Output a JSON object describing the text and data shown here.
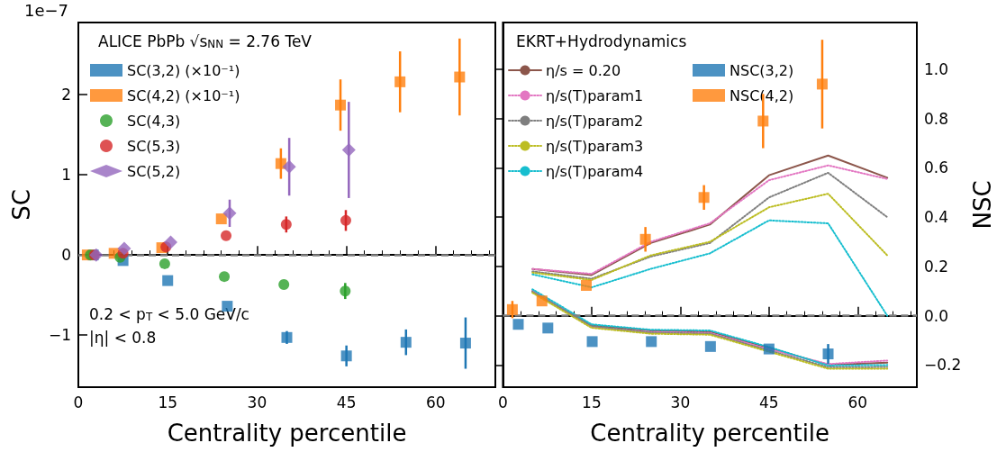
{
  "chart_data": [
    {
      "type": "scatter",
      "ylabel": "SC",
      "xlabel": "Centrality percentile",
      "legend_title": "ALICE PbPb √s$_{NN}$ = 2.76 TeV",
      "annotations": [
        "1e−7",
        "0.2 < p$_{T}$ < 5.0 GeV/c",
        "|η| < 0.8"
      ],
      "xlim": [
        0,
        70
      ],
      "xticks": [
        0,
        15,
        30,
        45,
        60
      ],
      "ylim": [
        -1.65,
        2.9
      ],
      "yticks": [
        {
          "value": -1,
          "label": "−1"
        },
        0,
        1,
        2
      ],
      "legend": "top left",
      "grid": false,
      "ref_lines": [
        {
          "axis": "y",
          "value": 0,
          "color": "#808080",
          "line_style": "dashed"
        }
      ],
      "series": [
        {
          "name": "SC(3,2) (×10⁻¹)",
          "color": "#1f77b4",
          "marker": "square",
          "x": [
            2.5,
            7.5,
            15,
            25,
            35,
            45,
            55,
            65
          ],
          "values": [
            0,
            -0.07,
            -0.32,
            -0.64,
            -1.03,
            -1.26,
            -1.09,
            -1.1
          ],
          "errors": [
            null,
            null,
            null,
            null,
            0.08,
            0.13,
            0.16,
            0.32
          ]
        },
        {
          "name": "SC(4,2) (×10⁻¹)",
          "color": "#ff7f0e",
          "marker": "square",
          "x": [
            1.5,
            6,
            14,
            24,
            34,
            44,
            54,
            64
          ],
          "values": [
            0,
            0.02,
            0.09,
            0.45,
            1.14,
            1.87,
            2.16,
            2.22
          ],
          "errors": [
            null,
            null,
            null,
            null,
            0.19,
            0.32,
            0.38,
            0.48
          ]
        },
        {
          "name": "SC(4,3)",
          "color": "#2ca02c",
          "marker": "circle",
          "x": [
            2,
            7,
            14.5,
            24.5,
            34.5,
            44.8
          ],
          "values": [
            0,
            -0.03,
            -0.11,
            -0.27,
            -0.37,
            -0.45
          ],
          "errors": [
            null,
            null,
            null,
            null,
            null,
            0.1
          ]
        },
        {
          "name": "SC(5,3)",
          "color": "#d62728",
          "marker": "circle",
          "x": [
            2.7,
            7.5,
            14.7,
            24.8,
            34.9,
            44.9
          ],
          "values": [
            0,
            0.02,
            0.1,
            0.24,
            0.38,
            0.43
          ],
          "errors": [
            null,
            null,
            null,
            null,
            0.1,
            0.13
          ]
        },
        {
          "name": "SC(5,2)",
          "color": "#9467bd",
          "marker": "diamond",
          "x": [
            3,
            7.7,
            15.5,
            25.4,
            35.4,
            45.4
          ],
          "values": [
            0,
            0.08,
            0.16,
            0.52,
            1.1,
            1.31
          ],
          "errors": [
            null,
            null,
            null,
            0.17,
            0.36,
            0.6
          ]
        }
      ]
    },
    {
      "type": "line",
      "ylabel": "NSC",
      "xlabel": "Centrality percentile",
      "legend_title": "EKRT+Hydrodynamics",
      "xlim": [
        0,
        70
      ],
      "xticks": [
        0,
        15,
        30,
        45,
        60
      ],
      "ylim": [
        -0.29,
        1.19
      ],
      "yticks": [
        {
          "value": -0.2,
          "label": "−0.2"
        },
        {
          "value": 0,
          "label": "0.0"
        },
        0.2,
        0.4,
        0.6,
        0.8,
        {
          "value": 1,
          "label": "1.0"
        }
      ],
      "legend": "top left",
      "grid": false,
      "ref_lines": [
        {
          "axis": "y",
          "value": 0,
          "color": "#808080",
          "line_style": "dashed"
        }
      ],
      "series": [
        {
          "name": "η/s = 0.20",
          "color": "#8c564b",
          "line_style": "solid",
          "marker": "none",
          "x": [
            5,
            15,
            25,
            35,
            45,
            55,
            65
          ],
          "values": [
            0.19,
            0.165,
            0.295,
            0.37,
            0.57,
            0.65,
            0.56
          ]
        },
        {
          "color": "#8c564b",
          "line_style": "solid",
          "marker": "none",
          "x": [
            5,
            15,
            25,
            35,
            45,
            55,
            65
          ],
          "values": [
            0.1,
            -0.04,
            -0.06,
            -0.065,
            -0.13,
            -0.2,
            -0.19
          ]
        },
        {
          "name": "η/s(T)param1",
          "color": "#e377c2",
          "line_style": "dotted",
          "marker": "none",
          "x": [
            5,
            15,
            25,
            35,
            45,
            55,
            65
          ],
          "values": [
            0.19,
            0.17,
            0.3,
            0.375,
            0.55,
            0.61,
            0.555
          ]
        },
        {
          "color": "#e377c2",
          "line_style": "dotted",
          "marker": "none",
          "x": [
            5,
            15,
            25,
            35,
            45,
            55,
            65
          ],
          "values": [
            0.104,
            -0.046,
            -0.066,
            -0.07,
            -0.136,
            -0.196,
            -0.182
          ]
        },
        {
          "name": "η/s(T)param2",
          "color": "#7f7f7f",
          "line_style": "dotted",
          "marker": "none",
          "x": [
            5,
            15,
            25,
            35,
            45,
            55,
            65
          ],
          "values": [
            0.18,
            0.15,
            0.24,
            0.295,
            0.48,
            0.58,
            0.4
          ]
        },
        {
          "color": "#7f7f7f",
          "line_style": "dotted",
          "marker": "none",
          "x": [
            5,
            15,
            25,
            35,
            45,
            55,
            65
          ],
          "values": [
            0.097,
            -0.042,
            -0.069,
            -0.073,
            -0.141,
            -0.209,
            -0.208
          ]
        },
        {
          "name": "η/s(T)param3",
          "color": "#bcbd22",
          "line_style": "dotted",
          "marker": "none",
          "x": [
            5,
            15,
            25,
            35,
            45,
            55,
            65
          ],
          "values": [
            0.175,
            0.145,
            0.245,
            0.3,
            0.44,
            0.495,
            0.245
          ]
        },
        {
          "color": "#bcbd22",
          "line_style": "dotted",
          "marker": "none",
          "x": [
            5,
            15,
            25,
            35,
            45,
            55,
            65
          ],
          "values": [
            0.093,
            -0.049,
            -0.073,
            -0.077,
            -0.146,
            -0.215,
            -0.215
          ]
        },
        {
          "name": "η/s(T)param4",
          "color": "#17becf",
          "line_style": "dotted",
          "marker": "none",
          "x": [
            5,
            15,
            25,
            35,
            45,
            55,
            65
          ],
          "values": [
            0.168,
            0.115,
            0.19,
            0.253,
            0.387,
            0.375,
            0
          ]
        },
        {
          "color": "#17becf",
          "line_style": "dotted",
          "marker": "none",
          "x": [
            5,
            15,
            25,
            35,
            45,
            55,
            65
          ],
          "values": [
            0.107,
            -0.035,
            -0.057,
            -0.06,
            -0.127,
            -0.202,
            -0.2
          ]
        },
        {
          "name": "NSC(3,2)",
          "type": "scatter",
          "color": "#1f77b4",
          "marker": "square",
          "x": [
            2.6,
            7.6,
            15.1,
            25.1,
            35.1,
            45,
            55
          ],
          "values": [
            -0.035,
            -0.05,
            -0.105,
            -0.105,
            -0.125,
            -0.135,
            -0.155
          ],
          "errors": [
            null,
            null,
            null,
            null,
            null,
            null,
            0.04
          ]
        },
        {
          "name": "NSC(4,2)",
          "type": "scatter",
          "color": "#ff7f0e",
          "marker": "square",
          "x": [
            1.6,
            6.6,
            14.1,
            24.1,
            34,
            44,
            54
          ],
          "values": [
            0.025,
            0.06,
            0.123,
            0.31,
            0.48,
            0.79,
            0.94
          ],
          "errors": [
            0.035,
            null,
            null,
            0.05,
            0.05,
            0.11,
            0.18
          ]
        }
      ]
    }
  ]
}
